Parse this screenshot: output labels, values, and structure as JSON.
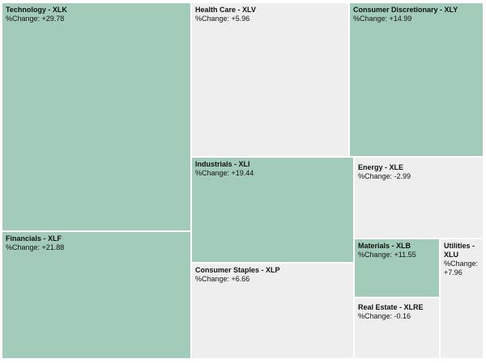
{
  "chart_data": {
    "type": "treemap",
    "value_label": "%Change",
    "colors": {
      "positive_large": "#a3cbb9",
      "small_or_negative": "#eeeeee"
    },
    "nodes": [
      {
        "label": "Technology - XLK",
        "change": "+29.78",
        "value": 29.78,
        "color": "#a3cbb9"
      },
      {
        "label": "Financials - XLF",
        "change": "+21.88",
        "value": 21.88,
        "color": "#a3cbb9"
      },
      {
        "label": "Health Care - XLV",
        "change": "+5.96",
        "value": 5.96,
        "color": "#eeeeee"
      },
      {
        "label": "Consumer Discretionary - XLY",
        "change": "+14.99",
        "value": 14.99,
        "color": "#a3cbb9"
      },
      {
        "label": "Industrials - XLI",
        "change": "+19.44",
        "value": 19.44,
        "color": "#a3cbb9"
      },
      {
        "label": "Energy - XLE",
        "change": "-2.99",
        "value": -2.99,
        "color": "#eeeeee"
      },
      {
        "label": "Consumer Staples - XLP",
        "change": "+6.66",
        "value": 6.66,
        "color": "#eeeeee"
      },
      {
        "label": "Materials - XLB",
        "change": "+11.55",
        "value": 11.55,
        "color": "#a3cbb9"
      },
      {
        "label": "Utilities - XLU",
        "change": "+7.96",
        "value": 7.96,
        "color": "#eeeeee"
      },
      {
        "label": "Real Estate - XLRE",
        "change": "-0.16",
        "value": -0.16,
        "color": "#eeeeee"
      }
    ]
  }
}
